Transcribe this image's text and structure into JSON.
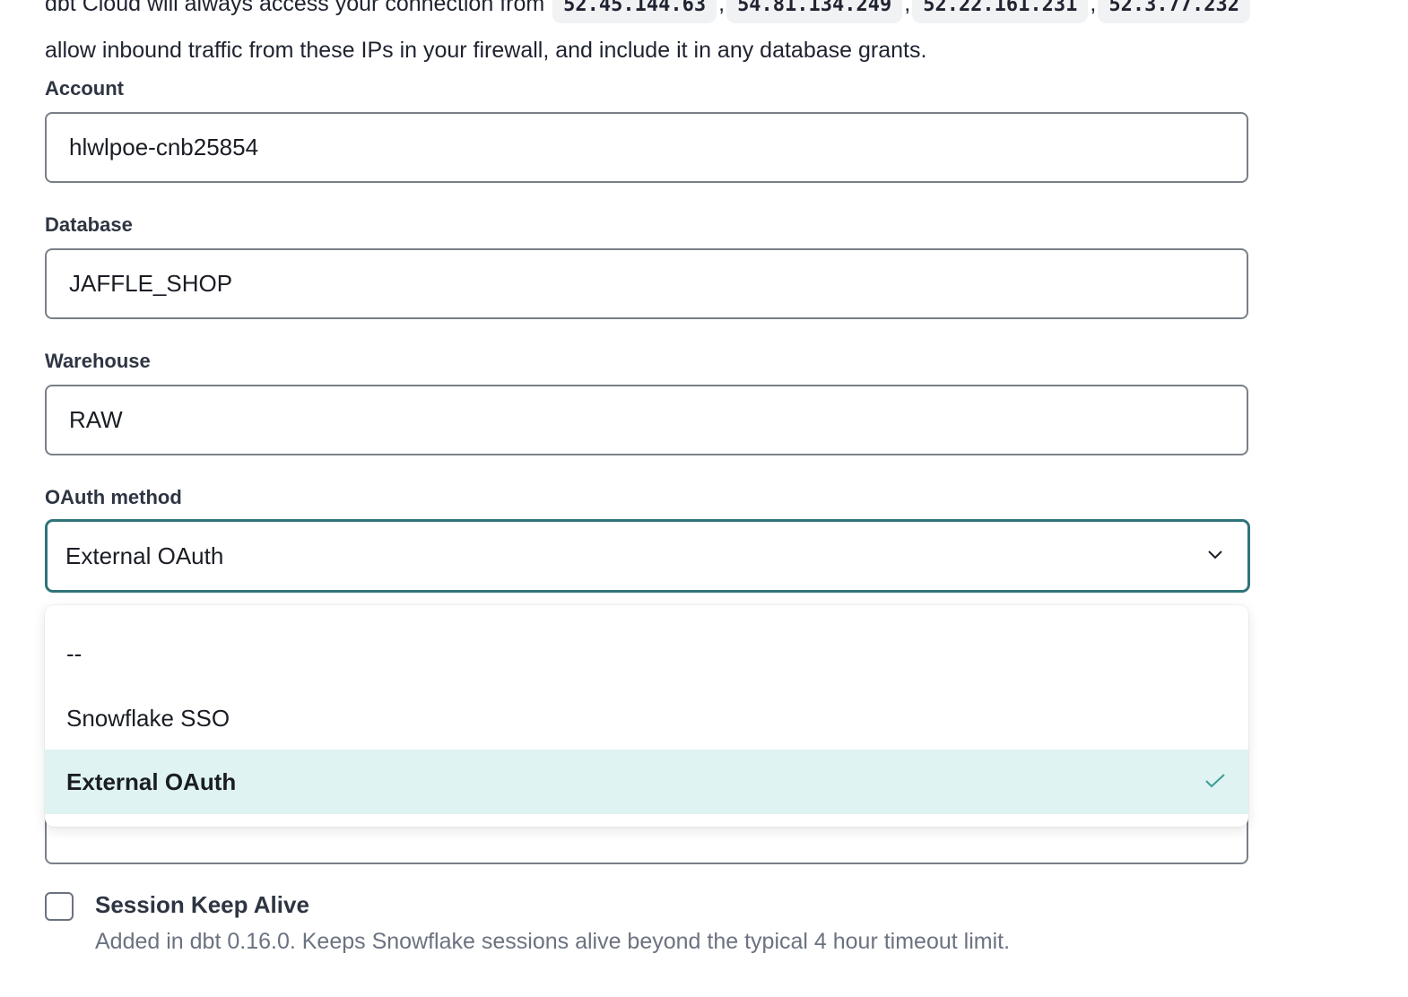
{
  "intro": {
    "line1_prefix": "dbt Cloud will always access your connection from",
    "ips": [
      "52.45.144.63",
      "54.81.134.249",
      "52.22.161.231",
      "52.3.77.232"
    ],
    "line2": "allow inbound traffic from these IPs in your firewall, and include it in any database grants."
  },
  "fields": {
    "account": {
      "label": "Account",
      "value": "hlwlpoe-cnb25854"
    },
    "database": {
      "label": "Database",
      "value": "JAFFLE_SHOP"
    },
    "warehouse": {
      "label": "Warehouse",
      "value": "RAW"
    }
  },
  "oauth": {
    "label": "OAuth method",
    "selected": "External OAuth",
    "options": [
      "--",
      "Snowflake SSO",
      "External OAuth"
    ],
    "accent_color": "#2f7479",
    "selected_bg": "#def3f2",
    "icon": "chevron-down-icon"
  },
  "session_keep_alive": {
    "label": "Session Keep Alive",
    "help": "Added in dbt 0.16.0. Keeps Snowflake sessions alive beyond the typical 4 hour timeout limit.",
    "checked": false
  }
}
